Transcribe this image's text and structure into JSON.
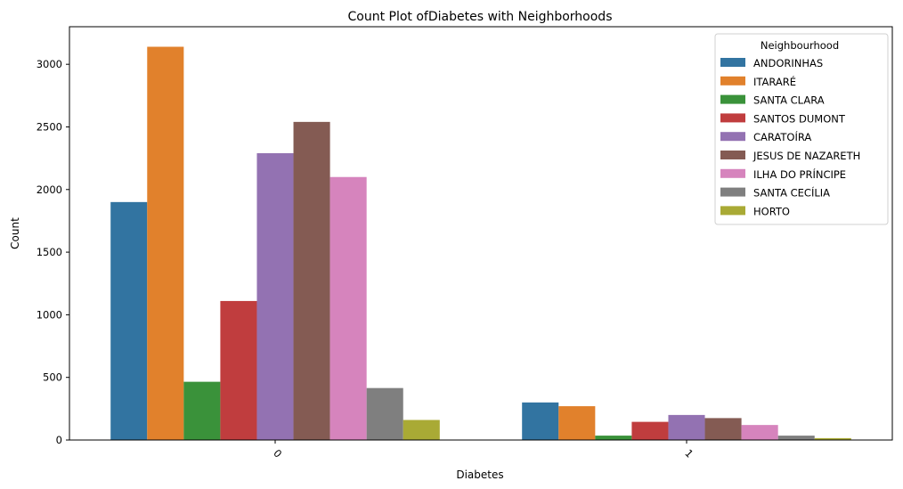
{
  "chart_data": {
    "type": "bar",
    "title": "Count Plot ofDiabetes with Neighborhoods",
    "xlabel": "Diabetes",
    "ylabel": "Count",
    "categories": [
      "0",
      "1"
    ],
    "ylim": [
      0,
      3300
    ],
    "yticks": [
      0,
      500,
      1000,
      1500,
      2000,
      2500,
      3000
    ],
    "grid": false,
    "legend_title": "Neighbourhood",
    "legend_position": "top-right",
    "series": [
      {
        "name": "ANDORINHAS",
        "color": "#3274a1",
        "values": [
          1900,
          300
        ]
      },
      {
        "name": "ITARARÉ",
        "color": "#e1812c",
        "values": [
          3140,
          270
        ]
      },
      {
        "name": "SANTA CLARA",
        "color": "#3a923a",
        "values": [
          465,
          35
        ]
      },
      {
        "name": "SANTOS DUMONT",
        "color": "#c03d3e",
        "values": [
          1110,
          145
        ]
      },
      {
        "name": "CARATOÍRA",
        "color": "#9372b2",
        "values": [
          2290,
          200
        ]
      },
      {
        "name": "JESUS DE NAZARETH",
        "color": "#845b53",
        "values": [
          2540,
          175
        ]
      },
      {
        "name": "ILHA DO PRÍNCIPE",
        "color": "#d684bd",
        "values": [
          2100,
          120
        ]
      },
      {
        "name": "SANTA CECÍLIA",
        "color": "#7f7f7f",
        "values": [
          415,
          35
        ]
      },
      {
        "name": "HORTO",
        "color": "#a9aa35",
        "values": [
          160,
          15
        ]
      }
    ]
  }
}
